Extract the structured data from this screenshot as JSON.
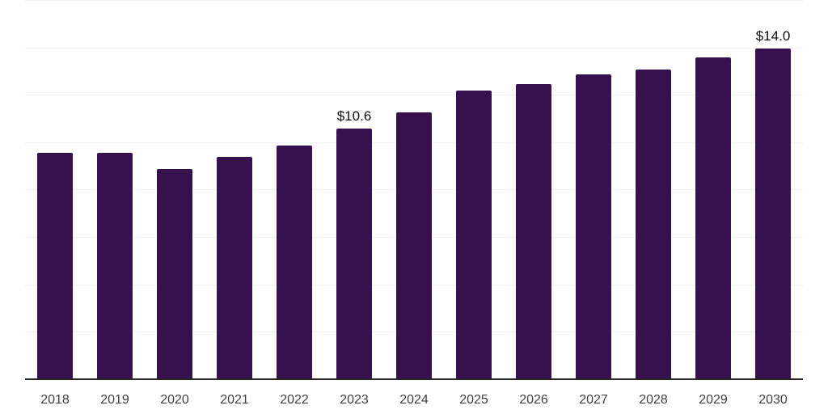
{
  "chart_data": {
    "type": "bar",
    "title": "",
    "xlabel": "",
    "ylabel": "",
    "categories": [
      "2018",
      "2019",
      "2020",
      "2021",
      "2022",
      "2023",
      "2024",
      "2025",
      "2026",
      "2027",
      "2028",
      "2029",
      "2030"
    ],
    "values": [
      9.6,
      9.6,
      8.9,
      9.4,
      9.9,
      10.6,
      11.3,
      12.2,
      12.5,
      12.9,
      13.1,
      13.6,
      14.0
    ],
    "data_labels": {
      "2023": "$10.6",
      "2030": "$14.0"
    },
    "ylim": [
      0,
      16
    ],
    "grid_step": 2,
    "grid": "on",
    "legend": "none",
    "colors": {
      "bar": "#36114d",
      "axis_line": "#262626",
      "gridline": "#f2f2f2",
      "tick_label": "#3f3f3f",
      "data_label": "#0a0a0a",
      "background": "#ffffff"
    }
  }
}
